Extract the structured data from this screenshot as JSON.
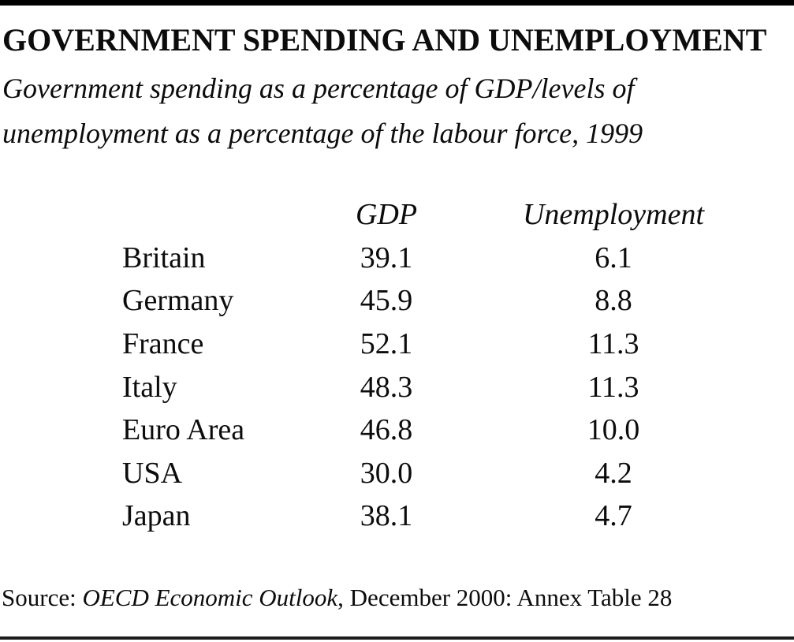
{
  "page": {
    "title": "GOVERNMENT SPENDING AND UNEMPLOYMENT",
    "subtitle_lines": [
      "Government spending as a percentage of GDP/levels of",
      "unemployment as a percentage of the labour force, 1999"
    ]
  },
  "table": {
    "columns": {
      "gdp": "GDP",
      "unemployment": "Unemployment"
    },
    "rows": [
      {
        "name": "Britain",
        "gdp": "39.1",
        "unemployment": "6.1"
      },
      {
        "name": "Germany",
        "gdp": "45.9",
        "unemployment": "8.8"
      },
      {
        "name": "France",
        "gdp": "52.1",
        "unemployment": "11.3"
      },
      {
        "name": "Italy",
        "gdp": "48.3",
        "unemployment": "11.3"
      },
      {
        "name": "Euro Area",
        "gdp": "46.8",
        "unemployment": "10.0"
      },
      {
        "name": "USA",
        "gdp": "30.0",
        "unemployment": "4.2"
      },
      {
        "name": "Japan",
        "gdp": "38.1",
        "unemployment": "4.7"
      }
    ]
  },
  "source": {
    "prefix": "Source: ",
    "publication": "OECD Economic Outlook",
    "suffix": ", December 2000: Annex Table 28"
  },
  "colors": {
    "background": "#ffffff",
    "text": "#0c0c0c",
    "rule": "#000000"
  }
}
